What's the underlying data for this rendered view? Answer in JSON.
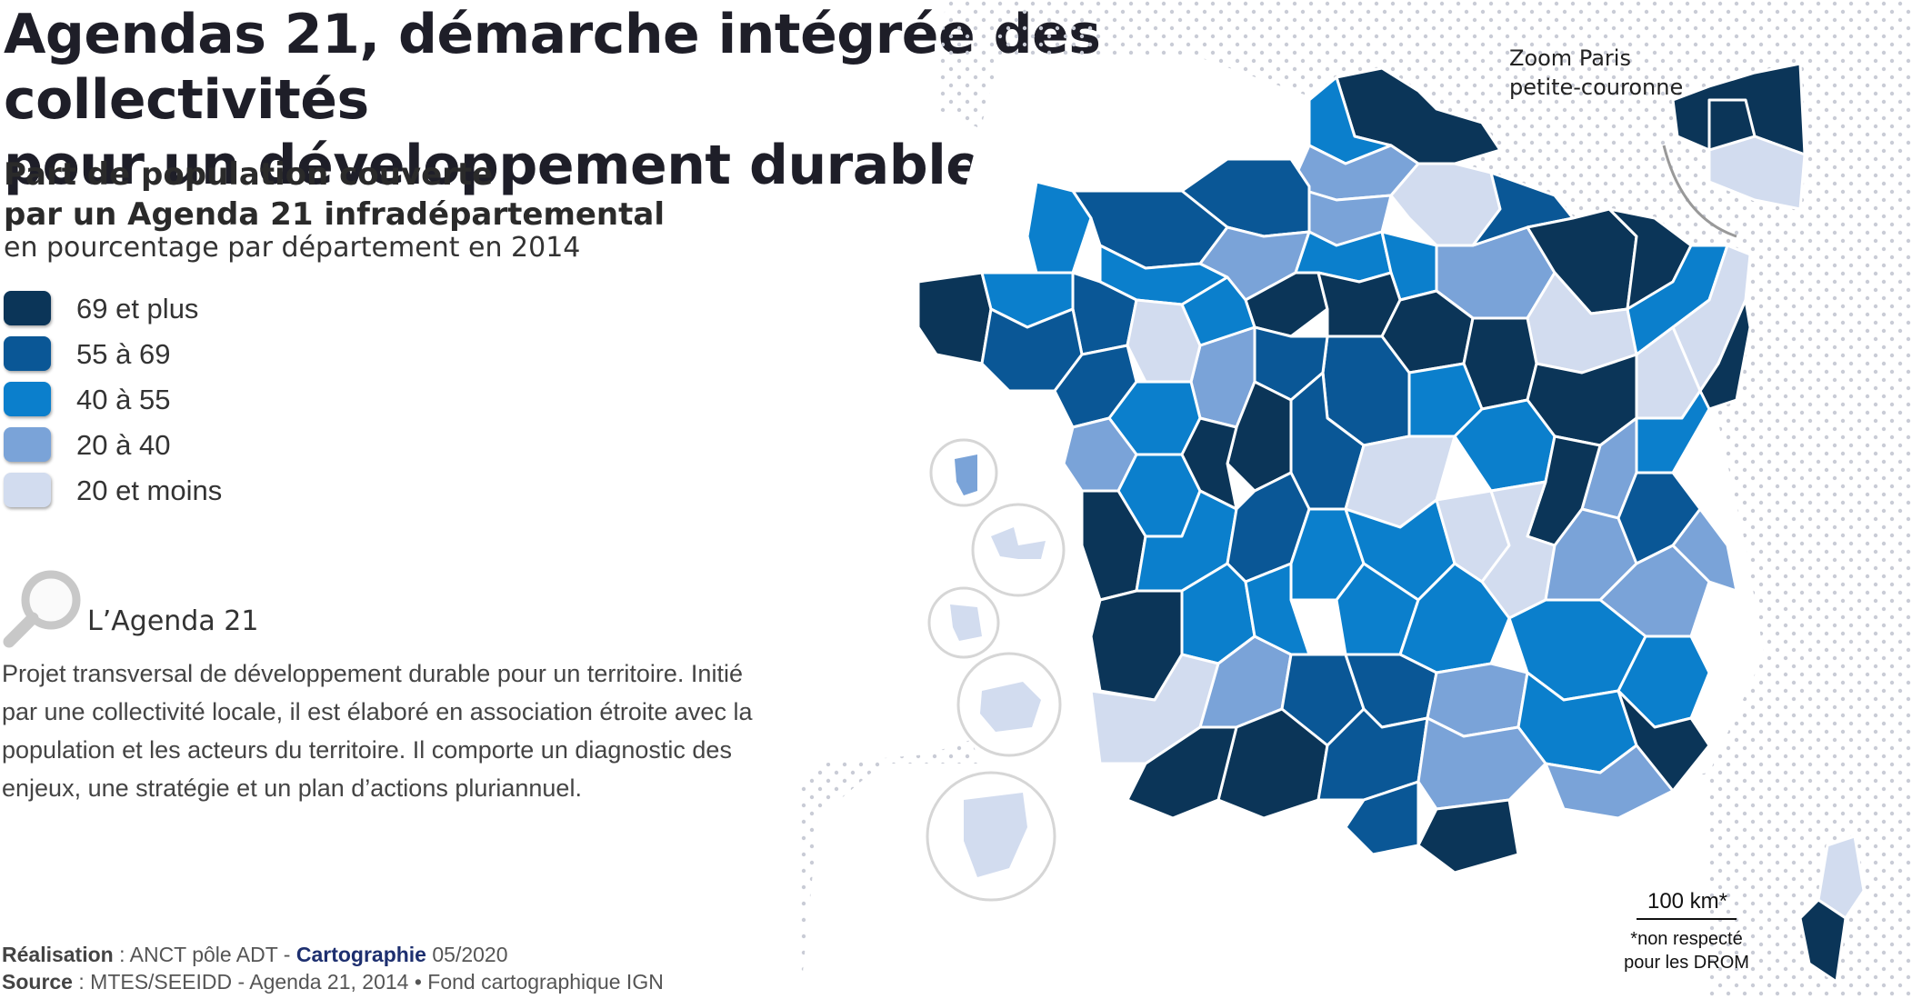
{
  "title": {
    "line1": "Agendas 21, démarche intégrée des collectivités",
    "line2": "pour un développement durable"
  },
  "subtitle": {
    "line1": "Part de population couverte",
    "line2": "par un Agenda 21 infradépartemental"
  },
  "unit": "en pourcentage par département en 2014",
  "legend": [
    {
      "label": "69 et plus",
      "color": "#0b3558"
    },
    {
      "label": "55 à 69",
      "color": "#0a5796"
    },
    {
      "label": "40 à 55",
      "color": "#0b7fcc"
    },
    {
      "label": "20 à 40",
      "color": "#7aa3d8"
    },
    {
      "label": "20 et moins",
      "color": "#d2dcef"
    }
  ],
  "box": {
    "title": "L’Agenda 21",
    "text": "Projet transversal de développement durable pour un territoire. Initié par une collectivité locale, il est élaboré en association étroite avec la population et les acteurs du territoire. Il comporte un diagnostic des enjeux, une stratégie et un plan d’actions pluriannuel."
  },
  "credits": {
    "realisation_label": "Réalisation",
    "realisation_value": " : ANCT pôle ADT - ",
    "cartographie": "Cartographie",
    "date": " 05/2020",
    "source_label": "Source",
    "source_value": " : MTES/SEEIDD - Agenda 21, 2014 • Fond cartographique IGN"
  },
  "map": {
    "zoom_label_1": "Zoom Paris",
    "zoom_label_2": "petite-couronne",
    "scale_label": "100 km*",
    "scale_note_1": "*non respecté",
    "scale_note_2": "pour les DROM"
  }
}
